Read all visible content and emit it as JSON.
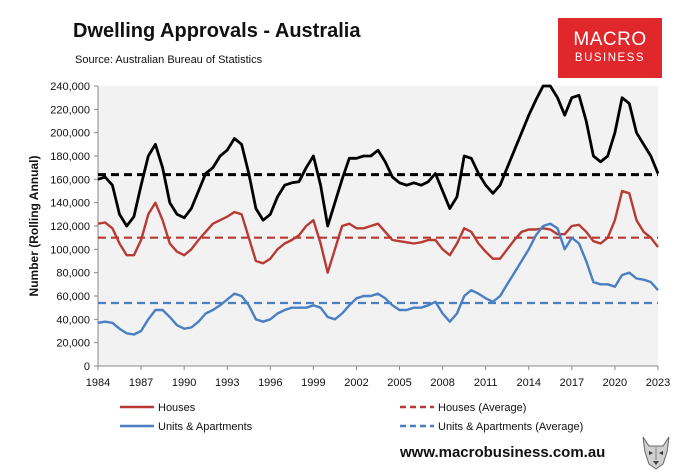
{
  "header": {
    "title": "Dwelling Approvals - Australia",
    "source": "Source: Australian Bureau of Statistics",
    "logo_line1": "MACRO",
    "logo_line2": "BUSINESS"
  },
  "footer": {
    "url": "www.macrobusiness.com.au"
  },
  "colors": {
    "total": "#000000",
    "houses": "#b83a34",
    "units": "#4a7fc1",
    "plot_bg": "#f2f2f2"
  },
  "chart_data": {
    "type": "line",
    "title": "Dwelling Approvals - Australia",
    "xlabel": "",
    "ylabel": "Number (Rolling Annual)",
    "xlim": [
      1984,
      2023
    ],
    "ylim": [
      0,
      240000
    ],
    "x_ticks": [
      1984,
      1987,
      1990,
      1993,
      1996,
      1999,
      2002,
      2005,
      2008,
      2011,
      2014,
      2017,
      2020,
      2023
    ],
    "x_tick_labels": [
      "1984",
      "1987",
      "1990",
      "1993",
      "1996",
      "1999",
      "2002",
      "2005",
      "2008",
      "2011",
      "2014",
      "2017",
      "2020",
      "2023"
    ],
    "y_ticks": [
      0,
      20000,
      40000,
      60000,
      80000,
      100000,
      120000,
      140000,
      160000,
      180000,
      200000,
      220000,
      240000
    ],
    "y_tick_labels": [
      "0",
      "20,000",
      "40,000",
      "60,000",
      "80,000",
      "100,000",
      "120,000",
      "140,000",
      "160,000",
      "180,000",
      "200,000",
      "220,000",
      "240,000"
    ],
    "grid": false,
    "legend_position": "bottom",
    "series": [
      {
        "name": "Total",
        "in_legend": false,
        "points": [
          [
            1984,
            160000
          ],
          [
            1984.5,
            162000
          ],
          [
            1985,
            155000
          ],
          [
            1985.5,
            130000
          ],
          [
            1986,
            120000
          ],
          [
            1986.5,
            128000
          ],
          [
            1987,
            155000
          ],
          [
            1987.5,
            180000
          ],
          [
            1988,
            190000
          ],
          [
            1988.5,
            170000
          ],
          [
            1989,
            140000
          ],
          [
            1989.5,
            130000
          ],
          [
            1990,
            127000
          ],
          [
            1990.5,
            135000
          ],
          [
            1991,
            150000
          ],
          [
            1991.5,
            165000
          ],
          [
            1992,
            170000
          ],
          [
            1992.5,
            180000
          ],
          [
            1993,
            185000
          ],
          [
            1993.5,
            195000
          ],
          [
            1994,
            190000
          ],
          [
            1994.5,
            165000
          ],
          [
            1995,
            135000
          ],
          [
            1995.5,
            125000
          ],
          [
            1996,
            130000
          ],
          [
            1996.5,
            145000
          ],
          [
            1997,
            155000
          ],
          [
            1997.5,
            157000
          ],
          [
            1998,
            158000
          ],
          [
            1998.5,
            170000
          ],
          [
            1999,
            180000
          ],
          [
            1999.5,
            155000
          ],
          [
            2000,
            120000
          ],
          [
            2000.5,
            140000
          ],
          [
            2001,
            160000
          ],
          [
            2001.5,
            178000
          ],
          [
            2002,
            178000
          ],
          [
            2002.5,
            180000
          ],
          [
            2003,
            180000
          ],
          [
            2003.5,
            185000
          ],
          [
            2004,
            175000
          ],
          [
            2004.5,
            162000
          ],
          [
            2005,
            157000
          ],
          [
            2005.5,
            155000
          ],
          [
            2006,
            157000
          ],
          [
            2006.5,
            155000
          ],
          [
            2007,
            158000
          ],
          [
            2007.5,
            165000
          ],
          [
            2008,
            150000
          ],
          [
            2008.5,
            135000
          ],
          [
            2009,
            145000
          ],
          [
            2009.5,
            180000
          ],
          [
            2010,
            178000
          ],
          [
            2010.5,
            165000
          ],
          [
            2011,
            155000
          ],
          [
            2011.5,
            148000
          ],
          [
            2012,
            155000
          ],
          [
            2012.5,
            170000
          ],
          [
            2013,
            185000
          ],
          [
            2013.5,
            200000
          ],
          [
            2014,
            215000
          ],
          [
            2014.5,
            228000
          ],
          [
            2015,
            240000
          ],
          [
            2015.5,
            240000
          ],
          [
            2016,
            230000
          ],
          [
            2016.5,
            215000
          ],
          [
            2017,
            230000
          ],
          [
            2017.5,
            232000
          ],
          [
            2018,
            210000
          ],
          [
            2018.5,
            180000
          ],
          [
            2019,
            175000
          ],
          [
            2019.5,
            180000
          ],
          [
            2020,
            200000
          ],
          [
            2020.5,
            230000
          ],
          [
            2021,
            225000
          ],
          [
            2021.5,
            200000
          ],
          [
            2022,
            190000
          ],
          [
            2022.5,
            180000
          ],
          [
            2023,
            165000
          ]
        ]
      },
      {
        "name": "Houses",
        "points": [
          [
            1984,
            122000
          ],
          [
            1984.5,
            123000
          ],
          [
            1985,
            118000
          ],
          [
            1985.5,
            105000
          ],
          [
            1986,
            95000
          ],
          [
            1986.5,
            95000
          ],
          [
            1987,
            108000
          ],
          [
            1987.5,
            130000
          ],
          [
            1988,
            140000
          ],
          [
            1988.5,
            125000
          ],
          [
            1989,
            105000
          ],
          [
            1989.5,
            98000
          ],
          [
            1990,
            95000
          ],
          [
            1990.5,
            100000
          ],
          [
            1991,
            108000
          ],
          [
            1991.5,
            115000
          ],
          [
            1992,
            122000
          ],
          [
            1992.5,
            125000
          ],
          [
            1993,
            128000
          ],
          [
            1993.5,
            132000
          ],
          [
            1994,
            130000
          ],
          [
            1994.5,
            110000
          ],
          [
            1995,
            90000
          ],
          [
            1995.5,
            88000
          ],
          [
            1996,
            92000
          ],
          [
            1996.5,
            100000
          ],
          [
            1997,
            105000
          ],
          [
            1997.5,
            108000
          ],
          [
            1998,
            112000
          ],
          [
            1998.5,
            120000
          ],
          [
            1999,
            125000
          ],
          [
            1999.5,
            105000
          ],
          [
            2000,
            80000
          ],
          [
            2000.5,
            100000
          ],
          [
            2001,
            120000
          ],
          [
            2001.5,
            122000
          ],
          [
            2002,
            118000
          ],
          [
            2002.5,
            118000
          ],
          [
            2003,
            120000
          ],
          [
            2003.5,
            122000
          ],
          [
            2004,
            115000
          ],
          [
            2004.5,
            108000
          ],
          [
            2005,
            107000
          ],
          [
            2005.5,
            106000
          ],
          [
            2006,
            105000
          ],
          [
            2006.5,
            106000
          ],
          [
            2007,
            108000
          ],
          [
            2007.5,
            108000
          ],
          [
            2008,
            100000
          ],
          [
            2008.5,
            95000
          ],
          [
            2009,
            105000
          ],
          [
            2009.5,
            118000
          ],
          [
            2010,
            115000
          ],
          [
            2010.5,
            105000
          ],
          [
            2011,
            98000
          ],
          [
            2011.5,
            92000
          ],
          [
            2012,
            92000
          ],
          [
            2012.5,
            100000
          ],
          [
            2013,
            108000
          ],
          [
            2013.5,
            115000
          ],
          [
            2014,
            117000
          ],
          [
            2014.5,
            117000
          ],
          [
            2015,
            118000
          ],
          [
            2015.5,
            117000
          ],
          [
            2016,
            113000
          ],
          [
            2016.5,
            113000
          ],
          [
            2017,
            120000
          ],
          [
            2017.5,
            121000
          ],
          [
            2018,
            115000
          ],
          [
            2018.5,
            107000
          ],
          [
            2019,
            105000
          ],
          [
            2019.5,
            110000
          ],
          [
            2020,
            125000
          ],
          [
            2020.5,
            150000
          ],
          [
            2021,
            148000
          ],
          [
            2021.5,
            125000
          ],
          [
            2022,
            115000
          ],
          [
            2022.5,
            110000
          ],
          [
            2023,
            102000
          ]
        ]
      },
      {
        "name": "Units & Apartments",
        "points": [
          [
            1984,
            37000
          ],
          [
            1984.5,
            38000
          ],
          [
            1985,
            37000
          ],
          [
            1985.5,
            32000
          ],
          [
            1986,
            28000
          ],
          [
            1986.5,
            27000
          ],
          [
            1987,
            30000
          ],
          [
            1987.5,
            40000
          ],
          [
            1988,
            48000
          ],
          [
            1988.5,
            48000
          ],
          [
            1989,
            42000
          ],
          [
            1989.5,
            35000
          ],
          [
            1990,
            32000
          ],
          [
            1990.5,
            33000
          ],
          [
            1991,
            38000
          ],
          [
            1991.5,
            45000
          ],
          [
            1992,
            48000
          ],
          [
            1992.5,
            52000
          ],
          [
            1993,
            57000
          ],
          [
            1993.5,
            62000
          ],
          [
            1994,
            60000
          ],
          [
            1994.5,
            52000
          ],
          [
            1995,
            40000
          ],
          [
            1995.5,
            38000
          ],
          [
            1996,
            40000
          ],
          [
            1996.5,
            45000
          ],
          [
            1997,
            48000
          ],
          [
            1997.5,
            50000
          ],
          [
            1998,
            50000
          ],
          [
            1998.5,
            50000
          ],
          [
            1999,
            52000
          ],
          [
            1999.5,
            50000
          ],
          [
            2000,
            42000
          ],
          [
            2000.5,
            40000
          ],
          [
            2001,
            45000
          ],
          [
            2001.5,
            52000
          ],
          [
            2002,
            58000
          ],
          [
            2002.5,
            60000
          ],
          [
            2003,
            60000
          ],
          [
            2003.5,
            62000
          ],
          [
            2004,
            58000
          ],
          [
            2004.5,
            52000
          ],
          [
            2005,
            48000
          ],
          [
            2005.5,
            48000
          ],
          [
            2006,
            50000
          ],
          [
            2006.5,
            50000
          ],
          [
            2007,
            52000
          ],
          [
            2007.5,
            55000
          ],
          [
            2008,
            45000
          ],
          [
            2008.5,
            38000
          ],
          [
            2009,
            45000
          ],
          [
            2009.5,
            60000
          ],
          [
            2010,
            65000
          ],
          [
            2010.5,
            62000
          ],
          [
            2011,
            58000
          ],
          [
            2011.5,
            55000
          ],
          [
            2012,
            60000
          ],
          [
            2012.5,
            70000
          ],
          [
            2013,
            80000
          ],
          [
            2013.5,
            90000
          ],
          [
            2014,
            100000
          ],
          [
            2014.5,
            112000
          ],
          [
            2015,
            120000
          ],
          [
            2015.5,
            122000
          ],
          [
            2016,
            118000
          ],
          [
            2016.5,
            100000
          ],
          [
            2017,
            110000
          ],
          [
            2017.5,
            105000
          ],
          [
            2018,
            90000
          ],
          [
            2018.5,
            72000
          ],
          [
            2019,
            70000
          ],
          [
            2019.5,
            70000
          ],
          [
            2020,
            68000
          ],
          [
            2020.5,
            78000
          ],
          [
            2021,
            80000
          ],
          [
            2021.5,
            75000
          ],
          [
            2022,
            74000
          ],
          [
            2022.5,
            72000
          ],
          [
            2023,
            65000
          ]
        ]
      },
      {
        "name": "Total (Average)",
        "in_legend": false,
        "dashed": true,
        "constant": 164000
      },
      {
        "name": "Houses (Average)",
        "dashed": true,
        "constant": 110000
      },
      {
        "name": "Units & Apartments (Average)",
        "dashed": true,
        "constant": 54000
      }
    ],
    "legend": [
      {
        "label": "Houses",
        "series": "Houses",
        "dashed": false
      },
      {
        "label": "Houses (Average)",
        "series": "Houses (Average)",
        "dashed": true
      },
      {
        "label": "Units & Apartments",
        "series": "Units & Apartments",
        "dashed": false
      },
      {
        "label": "Units & Apartments (Average)",
        "series": "Units & Apartments (Average)",
        "dashed": true
      }
    ]
  }
}
